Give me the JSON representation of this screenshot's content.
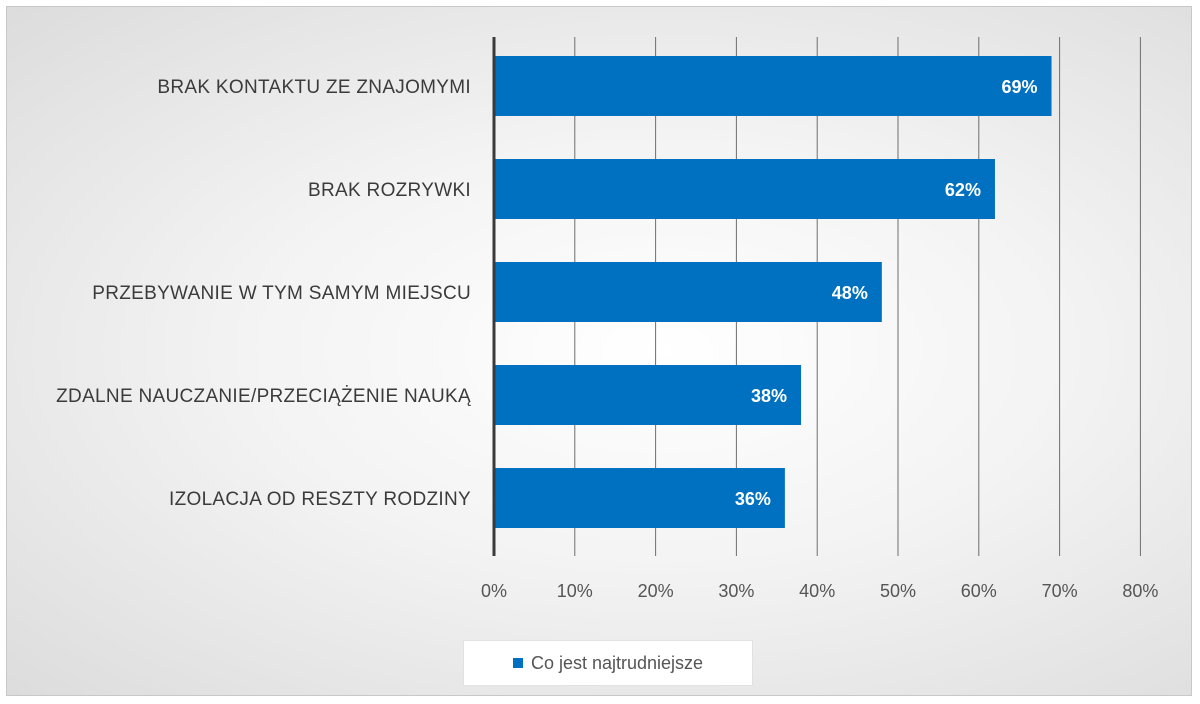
{
  "chart_data": {
    "type": "bar",
    "orientation": "horizontal",
    "categories": [
      "BRAK KONTAKTU ZE ZNAJOMYMI",
      "BRAK ROZRYWKI",
      "PRZEBYWANIE W TYM SAMYM MIEJSCU",
      "ZDALNE NAUCZANIE/PRZECIĄŻENIE NAUKĄ",
      "IZOLACJA OD RESZTY RODZINY"
    ],
    "series": [
      {
        "name": "Co jest najtrudniejsze",
        "values": [
          69,
          62,
          48,
          38,
          36
        ],
        "data_labels": [
          "69%",
          "62%",
          "48%",
          "38%",
          "36%"
        ],
        "color": "#0070c0"
      }
    ],
    "x_ticks": [
      "0%",
      "10%",
      "20%",
      "30%",
      "40%",
      "50%",
      "60%",
      "70%",
      "80%"
    ],
    "xlim": [
      0,
      80
    ],
    "unit": "%",
    "grid": "vertical",
    "legend_position": "bottom"
  }
}
